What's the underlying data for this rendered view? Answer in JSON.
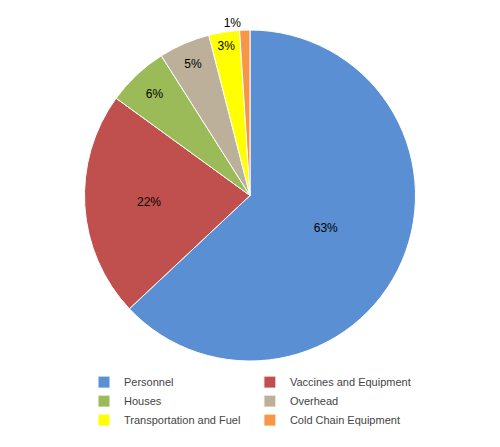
{
  "chart_data": {
    "type": "pie",
    "categories": [
      "Personnel",
      "Vaccines and Equipment",
      "Houses",
      "Overhead",
      "Transportation and Fuel",
      "Cold Chain Equipment"
    ],
    "values": [
      63,
      22,
      6,
      5,
      3,
      1
    ],
    "value_labels": [
      "63%",
      "22%",
      "6%",
      "5%",
      "3%",
      "1%"
    ],
    "colors": [
      "#5B8FD4",
      "#C0504D",
      "#9BBB59",
      "#BDB09A",
      "#FFFF00",
      "#F79646"
    ],
    "data_labels": true,
    "legend": "bottom"
  }
}
